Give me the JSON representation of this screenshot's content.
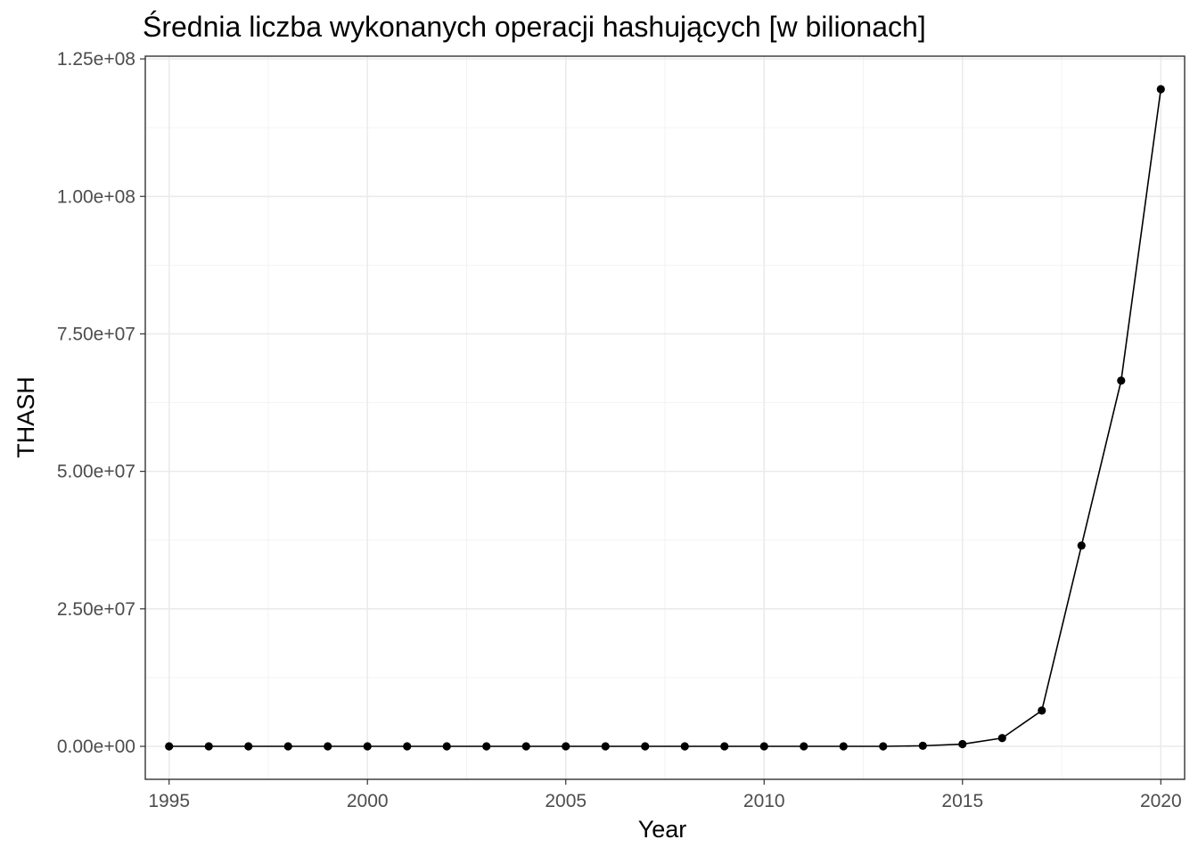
{
  "chart_data": {
    "type": "line",
    "title": "Średnia liczba wykonanych operacji hashujących [w bilionach]",
    "xlabel": "Year",
    "ylabel": "THASH",
    "xlim": [
      1994.4,
      2020.6
    ],
    "ylim": [
      -6000000,
      125500000
    ],
    "x_ticks": [
      1995,
      2000,
      2005,
      2010,
      2015,
      2020
    ],
    "x_tick_labels": [
      "1995",
      "2000",
      "2005",
      "2010",
      "2015",
      "2020"
    ],
    "y_ticks": [
      0,
      25000000,
      50000000,
      75000000,
      100000000,
      125000000
    ],
    "y_tick_labels": [
      "0.00e+00",
      "2.50e+07",
      "5.00e+07",
      "7.50e+07",
      "1.00e+08",
      "1.25e+08"
    ],
    "grid": true,
    "legend": "none",
    "series": [
      {
        "x": [
          1995,
          1996,
          1997,
          1998,
          1999,
          2000,
          2001,
          2002,
          2003,
          2004,
          2005,
          2006,
          2007,
          2008,
          2009,
          2010,
          2011,
          2012,
          2013,
          2014,
          2015,
          2016,
          2017,
          2018,
          2019,
          2020
        ],
        "values": [
          0,
          0,
          0,
          0,
          0,
          0,
          0,
          0,
          0,
          0,
          0,
          0,
          0,
          0,
          0,
          0,
          0,
          0,
          0,
          100000,
          400000,
          1500000,
          6500000,
          36500000,
          66500000,
          119500000
        ],
        "color": "#000000"
      }
    ]
  }
}
